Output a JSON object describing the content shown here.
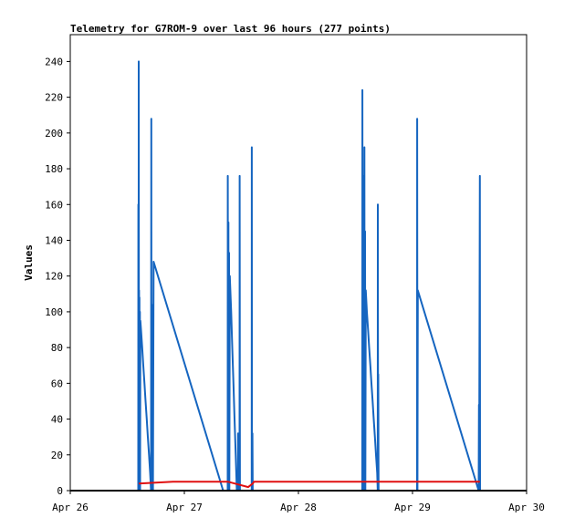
{
  "chart_data": {
    "type": "line",
    "title": "Telemetry for G7ROM-9 over last 96 hours (277 points)",
    "xlabel": "",
    "ylabel": "Values",
    "x_ticks": [
      "Apr 26",
      "Apr 27",
      "Apr 28",
      "Apr 29",
      "Apr 30"
    ],
    "y_ticks": [
      0,
      20,
      40,
      60,
      80,
      100,
      120,
      140,
      160,
      180,
      200,
      220,
      240
    ],
    "xlim_days": [
      0,
      4
    ],
    "ylim": [
      0,
      255
    ],
    "grid": false,
    "legend": "none",
    "series": [
      {
        "color": "#1565c0",
        "points": [
          [
            0.0,
            0
          ],
          [
            0.596,
            0
          ],
          [
            0.597,
            160
          ],
          [
            0.599,
            0
          ],
          [
            0.6,
            240
          ],
          [
            0.602,
            0
          ],
          [
            0.603,
            112
          ],
          [
            0.605,
            0
          ],
          [
            0.606,
            108
          ],
          [
            0.608,
            0
          ],
          [
            0.61,
            100
          ],
          [
            0.612,
            0
          ],
          [
            0.614,
            95
          ],
          [
            0.62,
            90
          ],
          [
            0.63,
            80
          ],
          [
            0.64,
            70
          ],
          [
            0.65,
            60
          ],
          [
            0.66,
            50
          ],
          [
            0.67,
            40
          ],
          [
            0.68,
            30
          ],
          [
            0.69,
            20
          ],
          [
            0.7,
            10
          ],
          [
            0.708,
            0
          ],
          [
            0.71,
            208
          ],
          [
            0.712,
            0
          ],
          [
            0.715,
            104
          ],
          [
            0.718,
            0
          ],
          [
            0.722,
            65
          ],
          [
            0.725,
            0
          ],
          [
            0.73,
            128
          ],
          [
            1.34,
            0
          ],
          [
            1.38,
            0
          ],
          [
            1.381,
            176
          ],
          [
            1.383,
            0
          ],
          [
            1.386,
            150
          ],
          [
            1.388,
            0
          ],
          [
            1.392,
            133
          ],
          [
            1.394,
            0
          ],
          [
            1.398,
            120
          ],
          [
            1.41,
            100
          ],
          [
            1.42,
            80
          ],
          [
            1.43,
            60
          ],
          [
            1.44,
            40
          ],
          [
            1.45,
            20
          ],
          [
            1.46,
            0
          ],
          [
            1.47,
            0
          ],
          [
            1.471,
            32
          ],
          [
            1.473,
            0
          ],
          [
            1.484,
            0
          ],
          [
            1.485,
            176
          ],
          [
            1.487,
            0
          ],
          [
            1.59,
            0
          ],
          [
            1.591,
            192
          ],
          [
            1.593,
            0
          ],
          [
            1.596,
            0
          ],
          [
            1.597,
            32
          ],
          [
            1.599,
            0
          ],
          [
            2.56,
            0
          ],
          [
            2.561,
            224
          ],
          [
            2.563,
            0
          ],
          [
            2.566,
            145
          ],
          [
            2.568,
            0
          ],
          [
            2.572,
            176
          ],
          [
            2.574,
            0
          ],
          [
            2.578,
            192
          ],
          [
            2.58,
            0
          ],
          [
            2.584,
            145
          ],
          [
            2.586,
            0
          ],
          [
            2.59,
            112
          ],
          [
            2.6,
            100
          ],
          [
            2.61,
            90
          ],
          [
            2.62,
            80
          ],
          [
            2.63,
            70
          ],
          [
            2.64,
            60
          ],
          [
            2.65,
            50
          ],
          [
            2.66,
            40
          ],
          [
            2.67,
            30
          ],
          [
            2.68,
            20
          ],
          [
            2.69,
            10
          ],
          [
            2.695,
            0
          ],
          [
            2.696,
            160
          ],
          [
            2.698,
            0
          ],
          [
            2.7,
            65
          ],
          [
            2.702,
            0
          ],
          [
            3.04,
            0
          ],
          [
            3.041,
            208
          ],
          [
            3.043,
            0
          ],
          [
            3.046,
            112
          ],
          [
            3.58,
            0
          ],
          [
            3.582,
            48
          ],
          [
            3.584,
            0
          ],
          [
            3.59,
            176
          ],
          [
            3.592,
            0
          ],
          [
            4.0,
            0
          ]
        ]
      },
      {
        "color": "#e01010",
        "points": [
          [
            0.6,
            4
          ],
          [
            0.9,
            5
          ],
          [
            1.38,
            5
          ],
          [
            1.56,
            2
          ],
          [
            1.6,
            4
          ],
          [
            1.61,
            5
          ],
          [
            2.56,
            5
          ],
          [
            3.59,
            5
          ]
        ]
      },
      {
        "color": "#000000",
        "points": [
          [
            0.0,
            0
          ],
          [
            4.0,
            0
          ]
        ]
      }
    ]
  }
}
